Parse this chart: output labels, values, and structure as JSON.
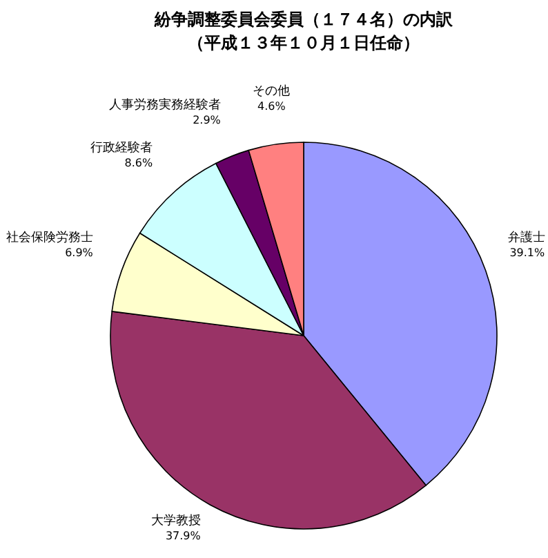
{
  "chart_data": {
    "type": "pie",
    "title": "紛争調整委員会委員（１７４名）の内訳",
    "subtitle": "（平成１３年１０月１日任命）",
    "categories": [
      "弁護士",
      "大学教授",
      "社会保険労務士",
      "行政経験者",
      "人事労務実務経験者",
      "その他"
    ],
    "values": [
      39.1,
      37.9,
      6.9,
      8.6,
      2.9,
      4.6
    ],
    "value_labels": [
      "39.1%",
      "37.9%",
      "6.9%",
      "8.6%",
      "2.9%",
      "4.6%"
    ],
    "colors": [
      "#9999ff",
      "#993366",
      "#ffffcc",
      "#ccffff",
      "#660066",
      "#ff8080"
    ],
    "legend": false
  }
}
